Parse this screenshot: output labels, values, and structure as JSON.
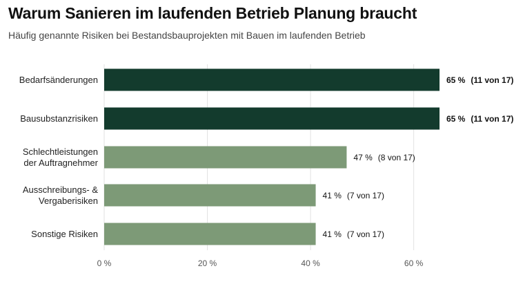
{
  "chart_data": {
    "type": "bar",
    "orientation": "horizontal",
    "title": "Warum Sanieren im laufenden Betrieb Planung braucht",
    "subtitle": "Häufig genannte Risiken bei Bestandsbauprojekten mit Bauen im laufenden Betrieb",
    "categories": [
      [
        "Bedarfsänderungen"
      ],
      [
        "Bausubstanzrisiken"
      ],
      [
        "Schlechtleistungen",
        "der Auftragnehmer"
      ],
      [
        "Ausschreibungs- &",
        "Vergaberisiken"
      ],
      [
        "Sonstige Risiken"
      ]
    ],
    "values": [
      65,
      65,
      47,
      41,
      41
    ],
    "value_labels": [
      "65 %",
      "65 %",
      "47 %",
      "41 %",
      "41 %"
    ],
    "count_labels": [
      "(11 von 17)",
      "(11 von 17)",
      "(8 von 17)",
      "(7 von 17)",
      "(7 von 17)"
    ],
    "bar_colors": [
      "#133b2d",
      "#133b2d",
      "#7d9a77",
      "#7d9a77",
      "#7d9a77"
    ],
    "highlight": [
      true,
      true,
      false,
      false,
      false
    ],
    "xlim": [
      0,
      65
    ],
    "xticks": [
      0,
      20,
      40,
      60
    ],
    "xtick_labels": [
      "0 %",
      "20 %",
      "40 %",
      "60 %"
    ],
    "grid": true,
    "xlabel": "",
    "ylabel": ""
  }
}
